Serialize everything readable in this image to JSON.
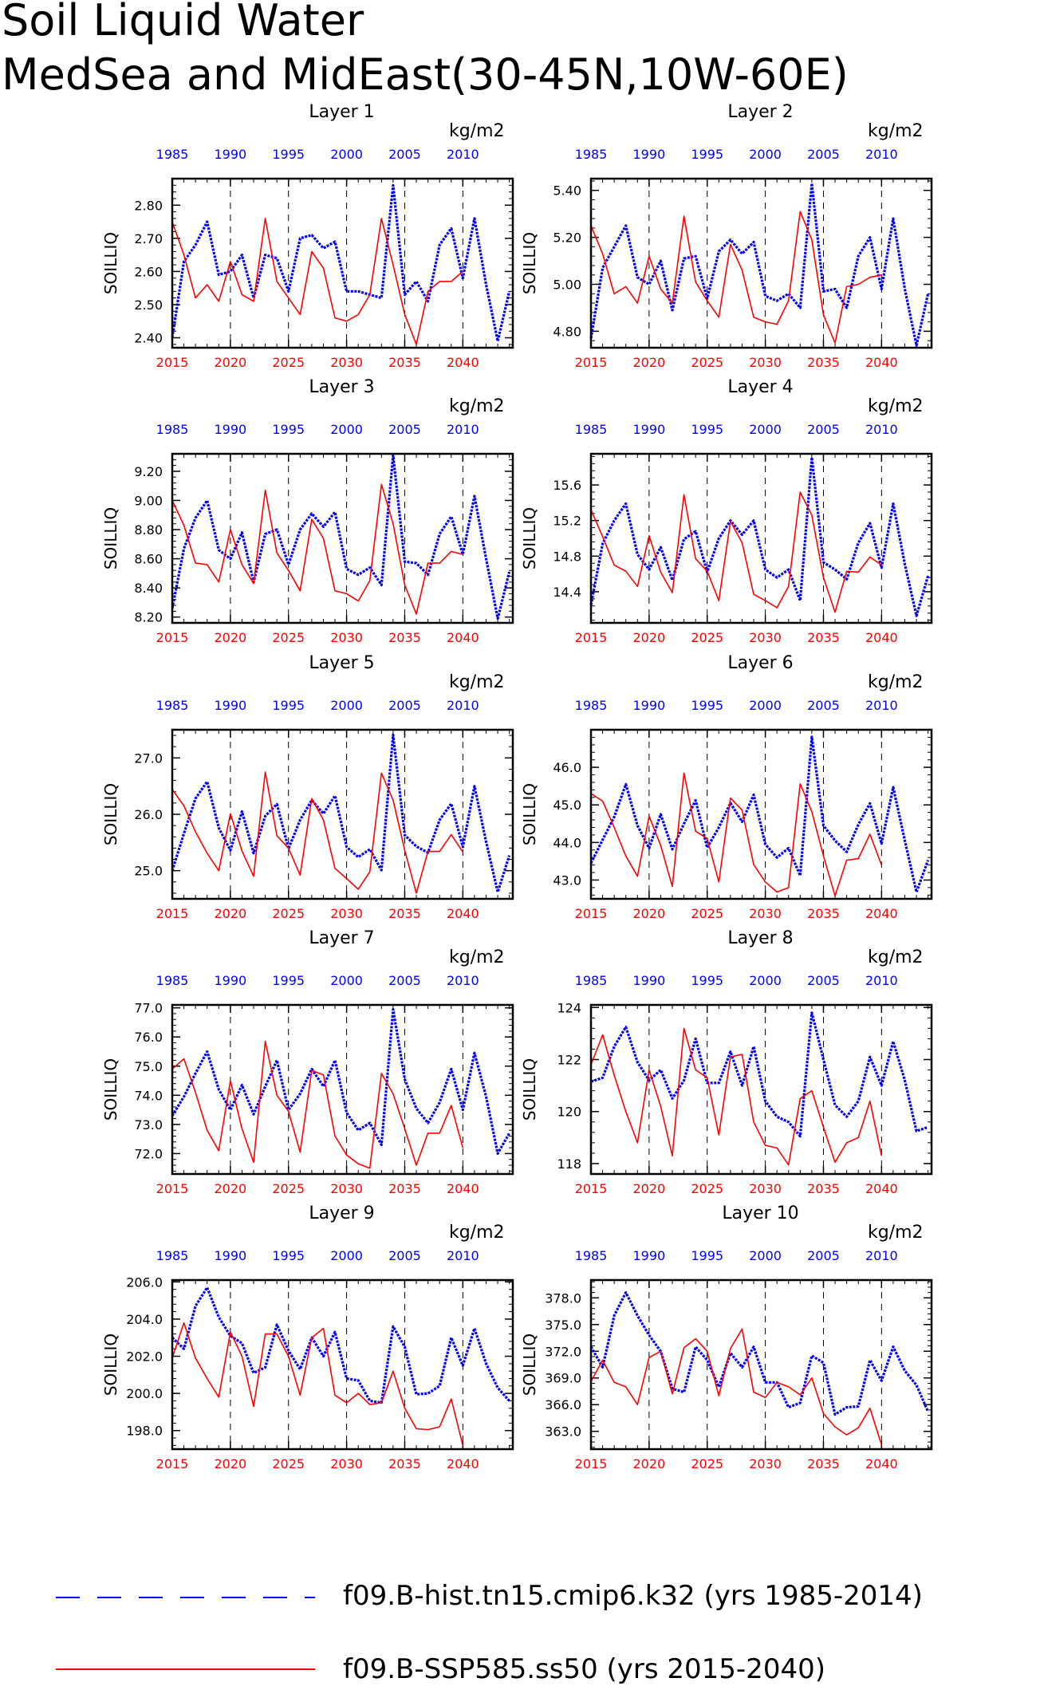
{
  "title_line1": "Soil Liquid Water",
  "title_line2": "MedSea and MidEast(30-45N,10W-60E)",
  "colors": {
    "hist": "#0000ff",
    "ssp": "#ff0000",
    "axis": "#000000",
    "grid": "#000000"
  },
  "legend": [
    {
      "label": "f09.B-hist.tn15.cmip6.k32 (yrs 1985-2014)",
      "color": "#0000ff",
      "style": "dashed"
    },
    {
      "label": "f09.B-SSP585.ss50 (yrs 2015-2040)",
      "color": "#ff0000",
      "style": "solid"
    }
  ],
  "chart_data": [
    {
      "type": "line",
      "title": "Layer 1",
      "ylabel": "SOILLIQ",
      "units": "kg/m2",
      "ylim": [
        2.37,
        2.88
      ],
      "yticks": [
        2.4,
        2.5,
        2.6,
        2.7,
        2.8
      ],
      "ytick_labels": [
        "2.40",
        "2.50",
        "2.60",
        "2.70",
        "2.80"
      ],
      "xticks_bottom": [
        "2015",
        "2020",
        "2025",
        "2030",
        "2035",
        "2040"
      ],
      "xticks_top": [
        "1985",
        "1990",
        "1995",
        "2000",
        "2005",
        "2010"
      ],
      "series": [
        {
          "name": "f09.B-hist.tn15.cmip6.k32",
          "x_start": 1985,
          "values": [
            2.4,
            2.63,
            2.68,
            2.75,
            2.59,
            2.6,
            2.65,
            2.52,
            2.65,
            2.64,
            2.54,
            2.7,
            2.71,
            2.67,
            2.69,
            2.54,
            2.54,
            2.53,
            2.52,
            2.86,
            2.53,
            2.57,
            2.51,
            2.68,
            2.73,
            2.58,
            2.76,
            2.56,
            2.39,
            2.54
          ]
        },
        {
          "name": "f09.B-SSP585.ss50",
          "x_start": 2015,
          "values": [
            2.75,
            2.65,
            2.52,
            2.56,
            2.51,
            2.63,
            2.53,
            2.51,
            2.76,
            2.57,
            2.52,
            2.47,
            2.66,
            2.61,
            2.46,
            2.45,
            2.47,
            2.53,
            2.76,
            2.62,
            2.47,
            2.38,
            2.54,
            2.57,
            2.57,
            2.6
          ]
        }
      ]
    },
    {
      "type": "line",
      "title": "Layer 2",
      "ylabel": "SOILLIQ",
      "units": "kg/m2",
      "ylim": [
        4.73,
        5.45
      ],
      "yticks": [
        4.8,
        5.0,
        5.2,
        5.4
      ],
      "ytick_labels": [
        "4.80",
        "5.00",
        "5.20",
        "5.40"
      ],
      "xticks_bottom": [
        "2015",
        "2020",
        "2025",
        "2030",
        "2035",
        "2040"
      ],
      "xticks_top": [
        "1985",
        "1990",
        "1995",
        "2000",
        "2005",
        "2010"
      ],
      "series": [
        {
          "name": "f09.B-hist.tn15.cmip6.k32",
          "x_start": 1985,
          "values": [
            4.77,
            5.07,
            5.16,
            5.25,
            5.03,
            5.0,
            5.1,
            4.89,
            5.11,
            5.12,
            4.94,
            5.14,
            5.19,
            5.13,
            5.18,
            4.95,
            4.93,
            4.96,
            4.9,
            5.43,
            4.97,
            4.98,
            4.9,
            5.12,
            5.2,
            4.98,
            5.28,
            4.98,
            4.74,
            4.96
          ]
        },
        {
          "name": "f09.B-SSP585.ss50",
          "x_start": 2015,
          "values": [
            5.25,
            5.13,
            4.96,
            4.99,
            4.92,
            5.12,
            4.98,
            4.92,
            5.29,
            5.01,
            4.93,
            4.86,
            5.17,
            5.06,
            4.86,
            4.84,
            4.83,
            4.93,
            5.31,
            5.19,
            4.87,
            4.75,
            4.99,
            5.0,
            5.03,
            5.04
          ]
        }
      ]
    },
    {
      "type": "line",
      "title": "Layer 3",
      "ylabel": "SOILLIQ",
      "units": "kg/m2",
      "ylim": [
        8.16,
        9.32
      ],
      "yticks": [
        8.2,
        8.4,
        8.6,
        8.8,
        9.0,
        9.2
      ],
      "ytick_labels": [
        "8.20",
        "8.40",
        "8.60",
        "8.80",
        "9.00",
        "9.20"
      ],
      "xticks_bottom": [
        "2015",
        "2020",
        "2025",
        "2030",
        "2035",
        "2040"
      ],
      "xticks_top": [
        "1985",
        "1990",
        "1995",
        "2000",
        "2005",
        "2010"
      ],
      "series": [
        {
          "name": "f09.B-hist.tn15.cmip6.k32",
          "x_start": 1985,
          "values": [
            8.26,
            8.67,
            8.88,
            9.0,
            8.66,
            8.6,
            8.78,
            8.44,
            8.77,
            8.8,
            8.56,
            8.8,
            8.91,
            8.82,
            8.92,
            8.53,
            8.49,
            8.54,
            8.42,
            9.31,
            8.58,
            8.57,
            8.49,
            8.77,
            8.89,
            8.63,
            9.03,
            8.6,
            8.19,
            8.51
          ]
        },
        {
          "name": "f09.B-SSP585.ss50",
          "x_start": 2015,
          "values": [
            9.0,
            8.83,
            8.57,
            8.56,
            8.44,
            8.8,
            8.56,
            8.43,
            9.07,
            8.64,
            8.52,
            8.38,
            8.87,
            8.74,
            8.38,
            8.36,
            8.31,
            8.45,
            9.11,
            8.84,
            8.42,
            8.22,
            8.57,
            8.57,
            8.65,
            8.63
          ]
        }
      ]
    },
    {
      "type": "line",
      "title": "Layer 4",
      "ylabel": "SOILLIQ",
      "units": "kg/m2",
      "ylim": [
        14.05,
        15.95
      ],
      "yticks": [
        14.4,
        14.8,
        15.2,
        15.6
      ],
      "ytick_labels": [
        "14.4",
        "14.8",
        "15.2",
        "15.6"
      ],
      "xticks_bottom": [
        "2015",
        "2020",
        "2025",
        "2030",
        "2035",
        "2040"
      ],
      "xticks_top": [
        "1985",
        "1990",
        "1995",
        "2000",
        "2005",
        "2010"
      ],
      "series": [
        {
          "name": "f09.B-hist.tn15.cmip6.k32",
          "x_start": 1985,
          "values": [
            14.25,
            14.94,
            15.2,
            15.39,
            14.82,
            14.65,
            14.9,
            14.53,
            14.99,
            15.08,
            14.62,
            15.0,
            15.2,
            15.04,
            15.2,
            14.65,
            14.56,
            14.65,
            14.3,
            15.91,
            14.73,
            14.65,
            14.54,
            14.95,
            15.17,
            14.67,
            15.39,
            14.71,
            14.13,
            14.58
          ]
        },
        {
          "name": "f09.B-SSP585.ss50",
          "x_start": 2015,
          "values": [
            15.32,
            15.02,
            14.7,
            14.63,
            14.46,
            15.03,
            14.62,
            14.39,
            15.49,
            14.77,
            14.63,
            14.3,
            15.19,
            14.95,
            14.37,
            14.3,
            14.22,
            14.46,
            15.52,
            15.26,
            14.56,
            14.17,
            14.63,
            14.62,
            14.79,
            14.7
          ]
        }
      ]
    },
    {
      "type": "line",
      "title": "Layer 5",
      "ylabel": "SOILLIQ",
      "units": "kg/m2",
      "ylim": [
        24.5,
        27.5
      ],
      "yticks": [
        25.0,
        26.0,
        27.0
      ],
      "ytick_labels": [
        "25.0",
        "26.0",
        "27.0"
      ],
      "xticks_bottom": [
        "2015",
        "2020",
        "2025",
        "2030",
        "2035",
        "2040"
      ],
      "xticks_top": [
        "1985",
        "1990",
        "1995",
        "2000",
        "2005",
        "2010"
      ],
      "series": [
        {
          "name": "f09.B-hist.tn15.cmip6.k32",
          "x_start": 1985,
          "values": [
            25.0,
            25.66,
            26.28,
            26.58,
            25.76,
            25.36,
            26.05,
            25.31,
            25.97,
            26.18,
            25.39,
            25.9,
            26.25,
            26.01,
            26.33,
            25.42,
            25.24,
            25.38,
            25.01,
            27.41,
            25.63,
            25.43,
            25.32,
            25.9,
            26.19,
            25.42,
            26.5,
            25.51,
            24.62,
            25.27
          ]
        },
        {
          "name": "f09.B-SSP585.ss50",
          "x_start": 2015,
          "values": [
            26.44,
            26.15,
            25.69,
            25.31,
            25.0,
            26.01,
            25.35,
            24.9,
            26.75,
            25.62,
            25.4,
            24.92,
            26.28,
            25.9,
            25.04,
            24.86,
            24.67,
            24.98,
            26.73,
            26.25,
            25.36,
            24.6,
            25.34,
            25.34,
            25.64,
            25.33
          ]
        }
      ]
    },
    {
      "type": "line",
      "title": "Layer 6",
      "ylabel": "SOILLIQ",
      "units": "kg/m2",
      "ylim": [
        42.5,
        47.0
      ],
      "yticks": [
        43.0,
        44.0,
        45.0,
        46.0
      ],
      "ytick_labels": [
        "43.0",
        "44.0",
        "45.0",
        "46.0"
      ],
      "xticks_bottom": [
        "2015",
        "2020",
        "2025",
        "2030",
        "2035",
        "2040"
      ],
      "xticks_top": [
        "1985",
        "1990",
        "1995",
        "2000",
        "2005",
        "2010"
      ],
      "series": [
        {
          "name": "f09.B-hist.tn15.cmip6.k32",
          "x_start": 1985,
          "values": [
            43.45,
            44.07,
            44.68,
            45.55,
            44.45,
            43.85,
            44.75,
            43.82,
            44.5,
            45.12,
            43.86,
            44.4,
            45.05,
            44.55,
            45.27,
            43.95,
            43.6,
            43.85,
            43.12,
            46.81,
            44.45,
            44.05,
            43.75,
            44.48,
            45.04,
            43.97,
            45.47,
            44.05,
            42.68,
            43.53
          ]
        },
        {
          "name": "f09.B-SSP585.ss50",
          "x_start": 2015,
          "values": [
            45.3,
            45.1,
            44.4,
            43.64,
            43.1,
            44.7,
            43.92,
            42.83,
            45.85,
            44.3,
            44.1,
            42.95,
            45.18,
            44.86,
            43.41,
            42.95,
            42.68,
            42.8,
            45.56,
            44.82,
            43.64,
            42.58,
            43.53,
            43.57,
            44.22,
            43.4
          ]
        }
      ]
    },
    {
      "type": "line",
      "title": "Layer 7",
      "ylabel": "SOILLIQ",
      "units": "kg/m2",
      "ylim": [
        71.3,
        77.1
      ],
      "yticks": [
        72.0,
        73.0,
        74.0,
        75.0,
        76.0,
        77.0
      ],
      "ytick_labels": [
        "72.0",
        "73.0",
        "74.0",
        "75.0",
        "76.0",
        "77.0"
      ],
      "xticks_bottom": [
        "2015",
        "2020",
        "2025",
        "2030",
        "2035",
        "2040"
      ],
      "xticks_top": [
        "1985",
        "1990",
        "1995",
        "2000",
        "2005",
        "2010"
      ],
      "series": [
        {
          "name": "f09.B-hist.tn15.cmip6.k32",
          "x_start": 1985,
          "values": [
            73.3,
            73.95,
            74.75,
            75.5,
            74.2,
            73.5,
            74.35,
            73.35,
            74.3,
            75.2,
            73.5,
            74.05,
            74.9,
            74.3,
            75.2,
            73.4,
            72.8,
            73.05,
            72.3,
            76.95,
            74.55,
            73.55,
            73.05,
            73.75,
            74.9,
            73.5,
            75.45,
            73.95,
            72.0,
            72.7
          ]
        },
        {
          "name": "f09.B-SSP585.ss50",
          "x_start": 2015,
          "values": [
            74.9,
            75.25,
            74.1,
            72.8,
            72.1,
            74.5,
            72.85,
            71.7,
            75.85,
            74.0,
            73.45,
            72.05,
            74.85,
            74.7,
            72.6,
            71.95,
            71.65,
            71.5,
            74.75,
            74.05,
            72.85,
            71.6,
            72.7,
            72.7,
            73.65,
            72.2
          ]
        }
      ]
    },
    {
      "type": "line",
      "title": "Layer 8",
      "ylabel": "SOILLIQ",
      "units": "kg/m2",
      "ylim": [
        117.6,
        124.1
      ],
      "yticks": [
        118,
        120,
        122,
        124
      ],
      "ytick_labels": [
        "118",
        "120",
        "122",
        "124"
      ],
      "xticks_bottom": [
        "2015",
        "2020",
        "2025",
        "2030",
        "2035",
        "2040"
      ],
      "xticks_top": [
        "1985",
        "1990",
        "1995",
        "2000",
        "2005",
        "2010"
      ],
      "series": [
        {
          "name": "f09.B-hist.tn15.cmip6.k32",
          "x_start": 1985,
          "values": [
            121.15,
            121.3,
            122.5,
            123.25,
            121.9,
            121.2,
            121.6,
            120.5,
            121.2,
            122.8,
            121.1,
            121.1,
            122.3,
            121.0,
            122.5,
            120.4,
            119.8,
            119.6,
            119.05,
            123.8,
            122.0,
            120.25,
            119.8,
            120.4,
            122.1,
            121.0,
            122.7,
            121.2,
            119.25,
            119.4
          ]
        },
        {
          "name": "f09.B-SSP585.ss50",
          "x_start": 2015,
          "values": [
            121.8,
            122.95,
            121.4,
            120.0,
            118.8,
            121.6,
            120.2,
            118.3,
            123.2,
            121.6,
            121.3,
            119.1,
            122.1,
            122.2,
            119.6,
            118.7,
            118.6,
            117.95,
            120.5,
            120.8,
            119.4,
            118.05,
            118.8,
            119.0,
            120.4,
            118.3
          ]
        }
      ]
    },
    {
      "type": "line",
      "title": "Layer 9",
      "ylabel": "SOILLIQ",
      "units": "kg/m2",
      "ylim": [
        197.0,
        206.1
      ],
      "yticks": [
        198.0,
        200.0,
        202.0,
        204.0,
        206.0
      ],
      "ytick_labels": [
        "198.0",
        "200.0",
        "202.0",
        "204.0",
        "206.0"
      ],
      "xticks_bottom": [
        "2015",
        "2020",
        "2025",
        "2030",
        "2035",
        "2040"
      ],
      "xticks_top": [
        "1985",
        "1990",
        "1995",
        "2000",
        "2005",
        "2010"
      ],
      "series": [
        {
          "name": "f09.B-hist.tn15.cmip6.k32",
          "x_start": 1985,
          "values": [
            203.0,
            202.4,
            204.7,
            205.7,
            204.1,
            203.1,
            202.7,
            201.1,
            201.4,
            203.7,
            202.3,
            201.3,
            203.0,
            202.0,
            203.3,
            200.8,
            200.7,
            199.6,
            199.5,
            203.6,
            202.5,
            199.95,
            200.0,
            200.4,
            203.0,
            201.5,
            203.5,
            201.6,
            200.3,
            199.6
          ]
        },
        {
          "name": "f09.B-SSP585.ss50",
          "x_start": 2015,
          "values": [
            201.9,
            203.8,
            201.9,
            200.8,
            199.8,
            203.3,
            202.0,
            199.3,
            203.2,
            203.2,
            202.0,
            199.9,
            203.0,
            203.5,
            199.9,
            199.5,
            200.0,
            199.4,
            199.5,
            201.2,
            199.2,
            198.1,
            198.05,
            198.2,
            199.7,
            197.2
          ]
        }
      ]
    },
    {
      "type": "line",
      "title": "Layer 10",
      "ylabel": "SOILLIQ",
      "units": "kg/m2",
      "ylim": [
        361.0,
        380.0
      ],
      "yticks": [
        363.0,
        366.0,
        369.0,
        372.0,
        375.0,
        378.0
      ],
      "ytick_labels": [
        "363.0",
        "366.0",
        "369.0",
        "372.0",
        "375.0",
        "378.0"
      ],
      "xticks_bottom": [
        "2015",
        "2020",
        "2025",
        "2030",
        "2035",
        "2040"
      ],
      "xticks_top": [
        "1985",
        "1990",
        "1995",
        "2000",
        "2005",
        "2010"
      ],
      "series": [
        {
          "name": "f09.B-hist.tn15.cmip6.k32",
          "x_start": 1985,
          "values": [
            372.5,
            370.2,
            376.0,
            378.6,
            376.0,
            373.8,
            372.0,
            367.8,
            367.4,
            372.5,
            371.0,
            368.0,
            371.8,
            370.2,
            372.5,
            368.5,
            368.5,
            365.7,
            366.2,
            371.5,
            370.7,
            364.9,
            365.7,
            365.8,
            371.0,
            368.7,
            372.5,
            369.8,
            368.2,
            365.2
          ]
        },
        {
          "name": "f09.B-SSP585.ss50",
          "x_start": 2015,
          "values": [
            368.6,
            371.0,
            368.5,
            368.0,
            366.0,
            371.3,
            372.0,
            367.2,
            372.4,
            373.4,
            372.0,
            367.0,
            372.3,
            374.5,
            367.4,
            366.8,
            368.5,
            368.0,
            367.1,
            369.0,
            365.0,
            363.5,
            362.6,
            363.4,
            365.6,
            361.5
          ]
        }
      ]
    }
  ]
}
